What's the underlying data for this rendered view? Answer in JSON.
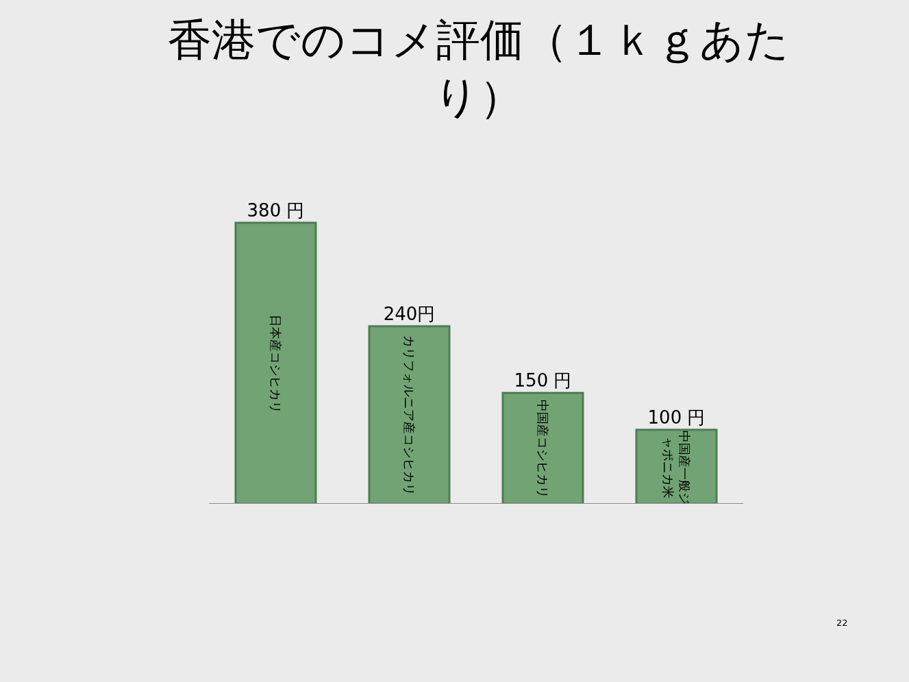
{
  "chart_data": {
    "type": "bar",
    "title": "香港でのコメ評価（１ｋｇあたり）",
    "categories": [
      "日本産コシヒカリ",
      "カリフォルニア産コシヒカリ",
      "中国産コシヒカリ",
      "中国産一般ジャポニカ米"
    ],
    "values": [
      380,
      240,
      150,
      100
    ],
    "value_labels": [
      "380 円",
      "240円",
      "150 円",
      "100 円"
    ],
    "color": "#72a374",
    "legend": false,
    "grid": false,
    "annotations": [
      "22"
    ]
  }
}
